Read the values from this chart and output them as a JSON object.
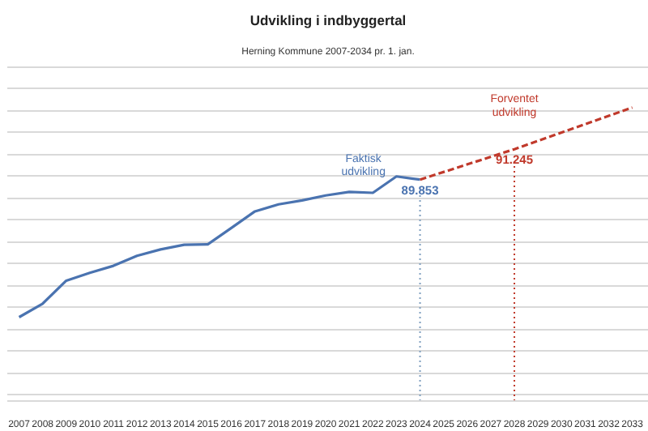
{
  "chart_data": {
    "type": "line",
    "title": "Udvikling i indbyggertal",
    "subtitle": "Herning Kommune 2007-2034 pr. 1. jan.",
    "series": [
      {
        "name": "Faktisk udvikling",
        "color": "#4a73b0",
        "line_style": "solid",
        "x": [
          2007,
          2008,
          2009,
          2010,
          2011,
          2012,
          2013,
          2014,
          2015,
          2016,
          2017,
          2018,
          2019,
          2020,
          2021,
          2022,
          2023,
          2024
        ],
        "values": [
          83560,
          84180,
          85230,
          85590,
          85910,
          86370,
          86660,
          86870,
          86890,
          87640,
          88400,
          88720,
          88900,
          89130,
          89290,
          89250,
          90000,
          89853
        ],
        "value_labels": [
          null,
          null,
          null,
          null,
          null,
          null,
          null,
          null,
          null,
          null,
          null,
          null,
          null,
          null,
          null,
          null,
          null,
          "89.853"
        ]
      },
      {
        "name": "Forventet udvikling",
        "color": "#c0392b",
        "line_style": "dashed",
        "x": [
          2024,
          2028,
          2033
        ],
        "values": [
          89853,
          91245,
          93150
        ],
        "value_labels": [
          null,
          "91.245",
          null
        ]
      }
    ],
    "xlim": [
      2006.5,
      2033.7
    ],
    "xticks": [
      2007,
      2008,
      2009,
      2010,
      2011,
      2012,
      2013,
      2014,
      2015,
      2016,
      2017,
      2018,
      2019,
      2020,
      2021,
      2022,
      2023,
      2024,
      2025,
      2026,
      2027,
      2028,
      2029,
      2030,
      2031,
      2032,
      2033
    ],
    "tick_labels": "x",
    "grid": "y",
    "ref_lines": [
      {
        "axis": "x",
        "value": 2024,
        "color": "#7f9fbf",
        "line_style": "dotted"
      },
      {
        "axis": "x",
        "value": 2028,
        "color": "#c0392b",
        "line_style": "dotted"
      }
    ]
  }
}
